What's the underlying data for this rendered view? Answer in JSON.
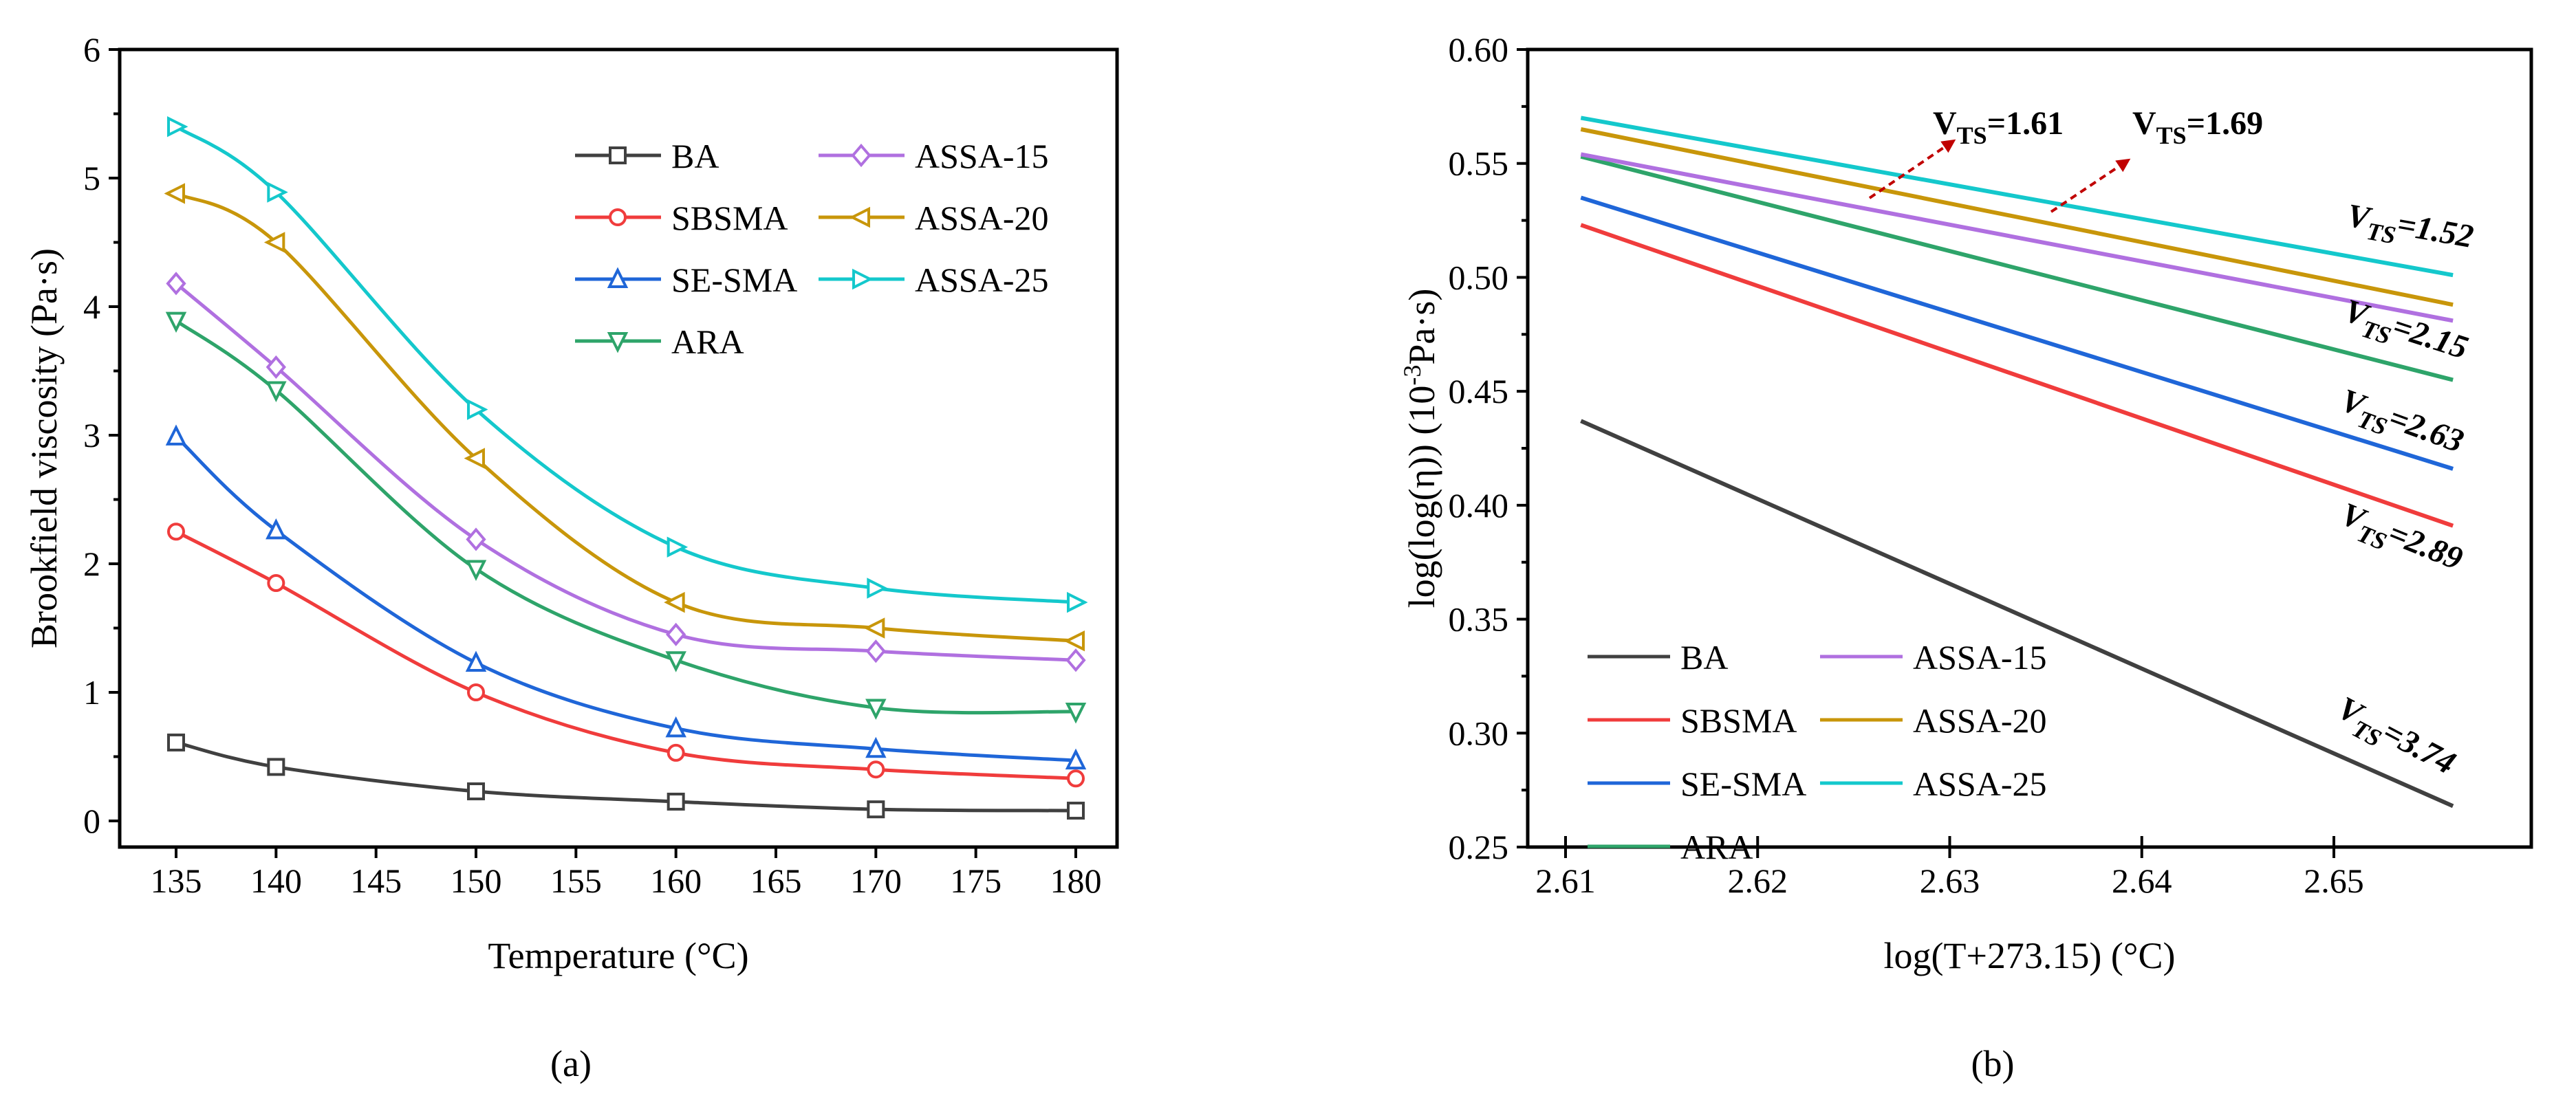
{
  "colors": {
    "BA": "#404040",
    "SBSMA": "#f03c3c",
    "SE-SMA": "#1f66d8",
    "ARA": "#2ea46a",
    "ASSA-15": "#b070e0",
    "ASSA-20": "#c8960a",
    "ASSA-25": "#14c8cc",
    "arrow": "#c00000"
  },
  "chart_data": [
    {
      "type": "line",
      "panel_label": "(a)",
      "xlabel": "Temperature (°C)",
      "ylabel": "Brookfield viscosity (Pa·s)",
      "xlim": [
        132,
        182
      ],
      "ylim": [
        -0.2,
        6
      ],
      "xticks": [
        "135",
        "140",
        "145",
        "150",
        "155",
        "160",
        "165",
        "170",
        "175",
        "180"
      ],
      "yticks": [
        "0",
        "1",
        "2",
        "3",
        "4",
        "5",
        "6"
      ],
      "legend_position": "top-right",
      "x": [
        135,
        140,
        150,
        160,
        170,
        180
      ],
      "series": [
        {
          "name": "BA",
          "marker": "square",
          "values": [
            0.61,
            0.42,
            0.23,
            0.15,
            0.09,
            0.08
          ]
        },
        {
          "name": "SBSMA",
          "marker": "circle",
          "values": [
            2.25,
            1.85,
            1.0,
            0.53,
            0.4,
            0.33
          ]
        },
        {
          "name": "SE-SMA",
          "marker": "triangle-up",
          "values": [
            2.99,
            2.26,
            1.23,
            0.72,
            0.56,
            0.47
          ]
        },
        {
          "name": "ARA",
          "marker": "triangle-down",
          "values": [
            3.89,
            3.35,
            1.96,
            1.25,
            0.88,
            0.85
          ]
        },
        {
          "name": "ASSA-15",
          "marker": "diamond",
          "values": [
            4.18,
            3.53,
            2.19,
            1.45,
            1.32,
            1.25
          ]
        },
        {
          "name": "ASSA-20",
          "marker": "triangle-left",
          "values": [
            4.88,
            4.5,
            2.82,
            1.7,
            1.5,
            1.4
          ]
        },
        {
          "name": "ASSA-25",
          "marker": "triangle-right",
          "values": [
            5.4,
            4.89,
            3.2,
            2.13,
            1.81,
            1.7
          ]
        }
      ]
    },
    {
      "type": "line",
      "panel_label": "(b)",
      "xlabel": "log(T+273.15) (°C)",
      "ylabel_parts": [
        "log(log(η)) (10",
        "-3",
        "Pa·s)"
      ],
      "xlim": [
        2.6085,
        2.6595
      ],
      "ylim": [
        0.25,
        0.6
      ],
      "xticks": [
        "2.61",
        "2.62",
        "2.63",
        "2.64",
        "2.65"
      ],
      "yticks": [
        "0.25",
        "0.30",
        "0.35",
        "0.40",
        "0.45",
        "0.50",
        "0.55",
        "0.60"
      ],
      "legend_position": "bottom-left",
      "x": [
        2.6108,
        2.6562
      ],
      "series": [
        {
          "name": "BA",
          "values": [
            0.437,
            0.268
          ],
          "vts": "3.74"
        },
        {
          "name": "SBSMA",
          "values": [
            0.523,
            0.391
          ],
          "vts": "2.89"
        },
        {
          "name": "SE-SMA",
          "values": [
            0.535,
            0.416
          ],
          "vts": "2.63"
        },
        {
          "name": "ARA",
          "values": [
            0.553,
            0.455
          ]
        },
        {
          "name": "ASSA-15",
          "values": [
            0.554,
            0.481
          ],
          "vts": "2.15"
        },
        {
          "name": "ASSA-20",
          "values": [
            0.565,
            0.488
          ]
        },
        {
          "name": "ASSA-25",
          "values": [
            0.57,
            0.501
          ],
          "vts": "1.52"
        }
      ],
      "annotations": [
        {
          "sub": "TS",
          "text": "=1.61",
          "arrow": true
        },
        {
          "sub": "TS",
          "text": "=1.69",
          "arrow": true
        },
        {
          "sub": "TS",
          "text": "=1.52"
        },
        {
          "sub": "TS",
          "text": "=2.15"
        },
        {
          "sub": "TS",
          "text": "=2.63"
        },
        {
          "sub": "TS",
          "text": "=2.89"
        },
        {
          "sub": "TS",
          "text": "=3.74"
        }
      ],
      "annotation_letter": "V"
    }
  ]
}
